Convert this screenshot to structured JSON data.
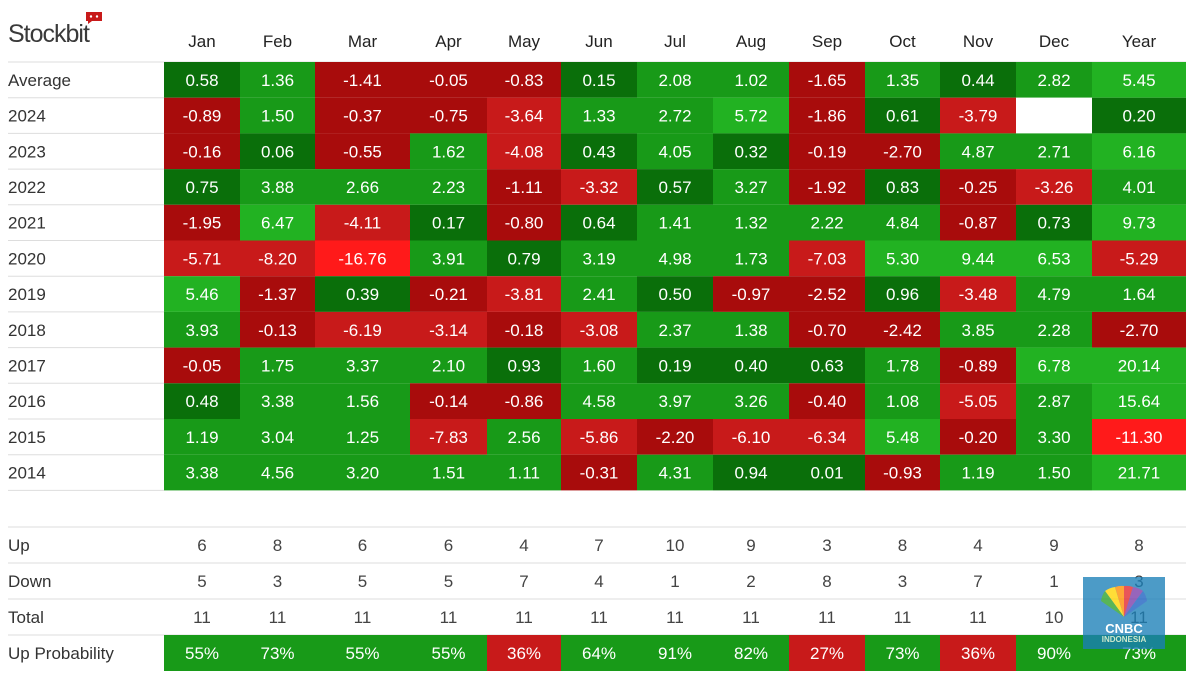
{
  "brand": {
    "logo_text": "Stockbit"
  },
  "watermark": {
    "line1": "CNBC",
    "line2": "INDONESIA"
  },
  "colors": {
    "strong_red": "#ff1a1a",
    "red": "#c81a1a",
    "dark_red": "#a80c0c",
    "green": "#189a18",
    "dark_green": "#0a6f0a",
    "bright_green": "#22b222",
    "grid_line": "#dddddd",
    "missing_cell": "#ffffff"
  },
  "chart_data": {
    "type": "heatmap",
    "title": "",
    "columns": [
      "Jan",
      "Feb",
      "Mar",
      "Apr",
      "May",
      "Jun",
      "Jul",
      "Aug",
      "Sep",
      "Oct",
      "Nov",
      "Dec",
      "Year"
    ],
    "rows": [
      {
        "label": "Average",
        "values": [
          "0.58",
          "1.36",
          "-1.41",
          "-0.05",
          "-0.83",
          "0.15",
          "2.08",
          "1.02",
          "-1.65",
          "1.35",
          "0.44",
          "2.82",
          "5.45"
        ]
      },
      {
        "label": "2024",
        "values": [
          "-0.89",
          "1.50",
          "-0.37",
          "-0.75",
          "-3.64",
          "1.33",
          "2.72",
          "5.72",
          "-1.86",
          "0.61",
          "-3.79",
          null,
          "0.20"
        ]
      },
      {
        "label": "2023",
        "values": [
          "-0.16",
          "0.06",
          "-0.55",
          "1.62",
          "-4.08",
          "0.43",
          "4.05",
          "0.32",
          "-0.19",
          "-2.70",
          "4.87",
          "2.71",
          "6.16"
        ]
      },
      {
        "label": "2022",
        "values": [
          "0.75",
          "3.88",
          "2.66",
          "2.23",
          "-1.11",
          "-3.32",
          "0.57",
          "3.27",
          "-1.92",
          "0.83",
          "-0.25",
          "-3.26",
          "4.01"
        ]
      },
      {
        "label": "2021",
        "values": [
          "-1.95",
          "6.47",
          "-4.11",
          "0.17",
          "-0.80",
          "0.64",
          "1.41",
          "1.32",
          "2.22",
          "4.84",
          "-0.87",
          "0.73",
          "9.73"
        ]
      },
      {
        "label": "2020",
        "values": [
          "-5.71",
          "-8.20",
          "-16.76",
          "3.91",
          "0.79",
          "3.19",
          "4.98",
          "1.73",
          "-7.03",
          "5.30",
          "9.44",
          "6.53",
          "-5.29"
        ]
      },
      {
        "label": "2019",
        "values": [
          "5.46",
          "-1.37",
          "0.39",
          "-0.21",
          "-3.81",
          "2.41",
          "0.50",
          "-0.97",
          "-2.52",
          "0.96",
          "-3.48",
          "4.79",
          "1.64"
        ]
      },
      {
        "label": "2018",
        "values": [
          "3.93",
          "-0.13",
          "-6.19",
          "-3.14",
          "-0.18",
          "-3.08",
          "2.37",
          "1.38",
          "-0.70",
          "-2.42",
          "3.85",
          "2.28",
          "-2.70"
        ]
      },
      {
        "label": "2017",
        "values": [
          "-0.05",
          "1.75",
          "3.37",
          "2.10",
          "0.93",
          "1.60",
          "0.19",
          "0.40",
          "0.63",
          "1.78",
          "-0.89",
          "6.78",
          "20.14"
        ]
      },
      {
        "label": "2016",
        "values": [
          "0.48",
          "3.38",
          "1.56",
          "-0.14",
          "-0.86",
          "4.58",
          "3.97",
          "3.26",
          "-0.40",
          "1.08",
          "-5.05",
          "2.87",
          "15.64"
        ]
      },
      {
        "label": "2015",
        "values": [
          "1.19",
          "3.04",
          "1.25",
          "-7.83",
          "2.56",
          "-5.86",
          "-2.20",
          "-6.10",
          "-6.34",
          "5.48",
          "-0.20",
          "3.30",
          "-11.30"
        ]
      },
      {
        "label": "2014",
        "values": [
          "3.38",
          "4.56",
          "3.20",
          "1.51",
          "1.11",
          "-0.31",
          "4.31",
          "0.94",
          "0.01",
          "-0.93",
          "1.19",
          "1.50",
          "21.71"
        ]
      }
    ],
    "stats": [
      {
        "label": "Up",
        "values": [
          "6",
          "8",
          "6",
          "6",
          "4",
          "7",
          "10",
          "9",
          "3",
          "8",
          "4",
          "9",
          "8"
        ]
      },
      {
        "label": "Down",
        "values": [
          "5",
          "3",
          "5",
          "5",
          "7",
          "4",
          "1",
          "2",
          "8",
          "3",
          "7",
          "1",
          "3"
        ]
      },
      {
        "label": "Total",
        "values": [
          "11",
          "11",
          "11",
          "11",
          "11",
          "11",
          "11",
          "11",
          "11",
          "11",
          "11",
          "10",
          "11"
        ]
      }
    ],
    "probability": {
      "label": "Up Probability",
      "values": [
        "55%",
        "73%",
        "55%",
        "55%",
        "36%",
        "64%",
        "91%",
        "82%",
        "27%",
        "73%",
        "36%",
        "90%",
        "73%"
      ]
    }
  }
}
